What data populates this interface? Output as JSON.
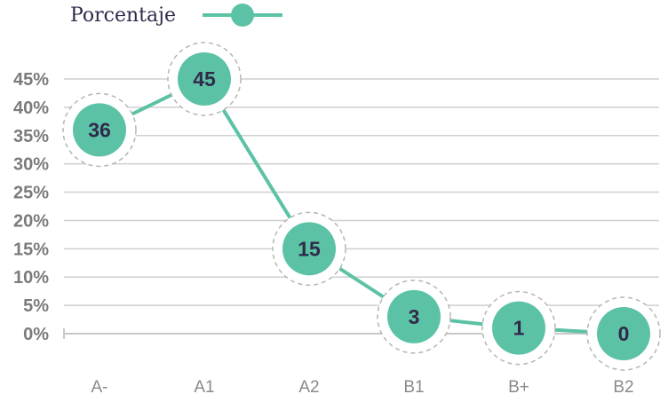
{
  "chart_data": {
    "type": "line",
    "categories": [
      "A-",
      "A1",
      "A2",
      "B1",
      "B+",
      "B2"
    ],
    "series": [
      {
        "name": "Porcentaje",
        "values": [
          36,
          45,
          15,
          3,
          1,
          0
        ]
      }
    ],
    "data_labels": [
      "36",
      "45",
      "15",
      "3",
      "1",
      "0"
    ],
    "y_ticks": [
      "0%",
      "5%",
      "10%",
      "15%",
      "20%",
      "25%",
      "30%",
      "35%",
      "40%",
      "45%"
    ],
    "ylim": [
      0,
      45
    ],
    "grid": true,
    "legend_position": "top-left",
    "colors": {
      "series": "#5cc2a6",
      "grid": "#cfcfcf",
      "halo": "#b5b5b5"
    }
  }
}
